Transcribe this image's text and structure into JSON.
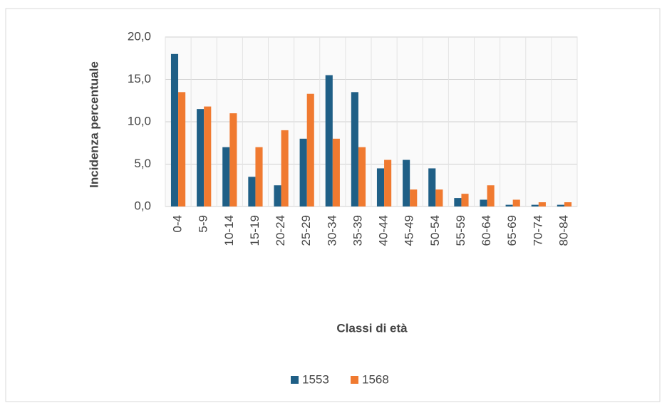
{
  "chart_data": {
    "type": "bar",
    "categories": [
      "0-4",
      "5-9",
      "10-14",
      "15-19",
      "20-24",
      "25-29",
      "30-34",
      "35-39",
      "40-44",
      "45-49",
      "50-54",
      "55-59",
      "60-64",
      "65-69",
      "70-74",
      "80-84"
    ],
    "series": [
      {
        "name": "1553",
        "color": "#1f5f86",
        "values": [
          18.0,
          11.5,
          7.0,
          3.5,
          2.5,
          8.0,
          15.5,
          13.5,
          4.5,
          5.5,
          4.5,
          1.0,
          0.8,
          0.2,
          0.2,
          0.2
        ]
      },
      {
        "name": "1568",
        "color": "#f07a30",
        "values": [
          13.5,
          11.8,
          11.0,
          7.0,
          9.0,
          13.3,
          8.0,
          7.0,
          5.5,
          2.0,
          2.0,
          1.5,
          2.5,
          0.8,
          0.5,
          0.5
        ]
      }
    ],
    "xlabel": "Classi di età",
    "ylabel": "Incidenza percentuale",
    "ylim": [
      0,
      20
    ],
    "yticks": [
      {
        "value": 0,
        "label": "0,0"
      },
      {
        "value": 5,
        "label": "5,0"
      },
      {
        "value": 10,
        "label": "10,0"
      },
      {
        "value": 15,
        "label": "15,0"
      },
      {
        "value": 20,
        "label": "20,0"
      }
    ],
    "grid": true,
    "legend": "bottom"
  }
}
